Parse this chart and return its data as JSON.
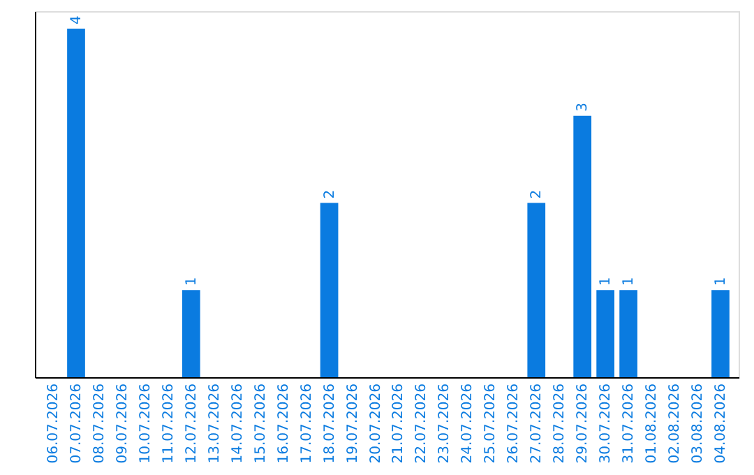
{
  "chart_data": {
    "type": "bar",
    "categories": [
      "06.07.2026",
      "07.07.2026",
      "08.07.2026",
      "09.07.2026",
      "10.07.2026",
      "11.07.2026",
      "12.07.2026",
      "13.07.2026",
      "14.07.2026",
      "15.07.2026",
      "16.07.2026",
      "17.07.2026",
      "18.07.2026",
      "19.07.2026",
      "20.07.2026",
      "21.07.2026",
      "22.07.2026",
      "23.07.2026",
      "24.07.2026",
      "25.07.2026",
      "26.07.2026",
      "27.07.2026",
      "28.07.2026",
      "29.07.2026",
      "30.07.2026",
      "31.07.2026",
      "01.08.2026",
      "02.08.2026",
      "03.08.2026",
      "04.08.2026"
    ],
    "values": [
      0,
      4,
      0,
      0,
      0,
      0,
      1,
      0,
      0,
      0,
      0,
      0,
      2,
      0,
      0,
      0,
      0,
      0,
      0,
      0,
      0,
      2,
      0,
      3,
      1,
      1,
      0,
      0,
      0,
      1
    ],
    "value_labels": [
      null,
      "4",
      null,
      null,
      null,
      null,
      "1",
      null,
      null,
      null,
      null,
      null,
      "2",
      null,
      null,
      null,
      null,
      null,
      null,
      null,
      null,
      "2",
      null,
      "3",
      "1",
      "1",
      null,
      null,
      null,
      "1"
    ],
    "color": "#0a7be0",
    "ylim": [
      0,
      4.2
    ],
    "tick_labels": "x",
    "grid": false
  }
}
